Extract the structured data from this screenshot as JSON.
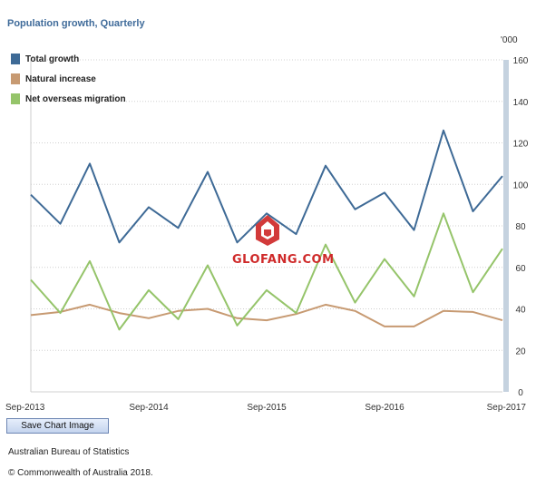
{
  "header": {
    "title": "Population growth, Quarterly",
    "unit": "'000"
  },
  "chart_data": {
    "type": "line",
    "title": "Population growth, Quarterly",
    "ylabel": "'000",
    "ylim": [
      0,
      160
    ],
    "yticks": [
      0,
      20,
      40,
      60,
      80,
      100,
      120,
      140,
      160
    ],
    "grid": true,
    "legend_position": "top-left",
    "categories": [
      "Sep-2013",
      "Dec-2013",
      "Mar-2014",
      "Jun-2014",
      "Sep-2014",
      "Dec-2014",
      "Mar-2015",
      "Jun-2015",
      "Sep-2015",
      "Dec-2015",
      "Mar-2016",
      "Jun-2016",
      "Sep-2016",
      "Dec-2016",
      "Mar-2017",
      "Jun-2017",
      "Sep-2017"
    ],
    "xtick_labels": [
      "Sep-2013",
      "Sep-2014",
      "Sep-2015",
      "Sep-2016",
      "Sep-2017"
    ],
    "series": [
      {
        "name": "Total growth",
        "color": "#3e6a96",
        "values": [
          95,
          81,
          110,
          72,
          89,
          79,
          106,
          72,
          86,
          76,
          109,
          88,
          96,
          78,
          126,
          87,
          104
        ]
      },
      {
        "name": "Natural increase",
        "color": "#c79a72",
        "values": [
          37,
          38.5,
          42,
          38,
          35.5,
          39,
          40,
          35.5,
          34.5,
          37.5,
          42,
          39,
          31.5,
          31.5,
          39,
          38.5,
          34.5
        ]
      },
      {
        "name": "Net overseas migration",
        "color": "#95c46a",
        "values": [
          54,
          38,
          63,
          30,
          49,
          35,
          61,
          32,
          49,
          38,
          71,
          43,
          64,
          46,
          86,
          48,
          69
        ]
      }
    ]
  },
  "actions": {
    "save_label": "Save Chart Image"
  },
  "footer": {
    "source": "Australian Bureau of Statistics",
    "copyright": "© Commonwealth of Australia 2018."
  },
  "watermark": {
    "text": "GLOFANG.COM"
  }
}
